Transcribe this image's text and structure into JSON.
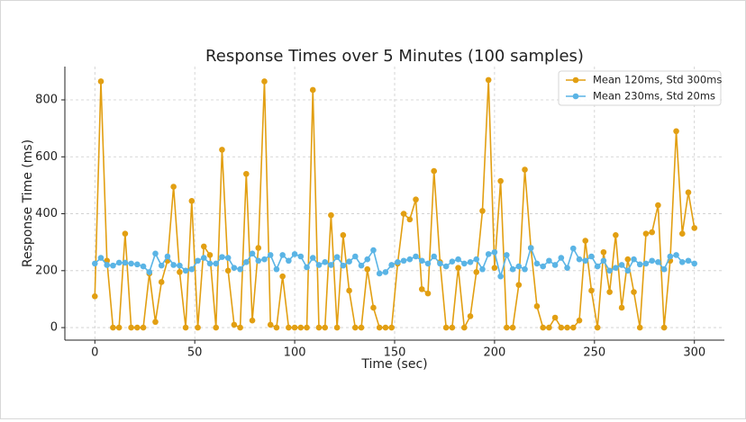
{
  "chart_data": {
    "type": "line",
    "title": "Response Times over 5 Minutes (100 samples)",
    "x_label": "Time (sec)",
    "y_label": "Response Time (ms)",
    "x": [
      0,
      3.03,
      6.06,
      9.09,
      12.12,
      15.15,
      18.18,
      21.21,
      24.24,
      27.27,
      30.3,
      33.33,
      36.36,
      39.39,
      42.42,
      45.45,
      48.48,
      51.52,
      54.55,
      57.58,
      60.61,
      63.64,
      66.67,
      69.7,
      72.73,
      75.76,
      78.79,
      81.82,
      84.85,
      87.88,
      90.91,
      93.94,
      96.97,
      100,
      103.03,
      106.06,
      109.09,
      112.12,
      115.15,
      118.18,
      121.21,
      124.24,
      127.27,
      130.3,
      133.33,
      136.36,
      139.39,
      142.42,
      145.45,
      148.48,
      151.52,
      154.55,
      157.58,
      160.61,
      163.64,
      166.67,
      169.7,
      172.73,
      175.76,
      178.79,
      181.82,
      184.85,
      187.88,
      190.91,
      193.94,
      196.97,
      200,
      203.03,
      206.06,
      209.09,
      212.12,
      215.15,
      218.18,
      221.21,
      224.24,
      227.27,
      230.3,
      233.33,
      236.36,
      239.39,
      242.42,
      245.45,
      248.48,
      251.52,
      254.55,
      257.58,
      260.61,
      263.64,
      266.67,
      269.7,
      272.73,
      275.76,
      278.79,
      281.82,
      284.85,
      287.88,
      290.91,
      293.94,
      296.97,
      300
    ],
    "series": [
      {
        "name": "Mean 120ms, Std 300ms",
        "color": "#e29f12",
        "values": [
          110,
          865,
          235,
          0,
          0,
          330,
          0,
          0,
          0,
          190,
          20,
          160,
          235,
          495,
          195,
          0,
          445,
          0,
          285,
          255,
          0,
          625,
          200,
          10,
          0,
          540,
          25,
          280,
          865,
          10,
          0,
          180,
          0,
          0,
          0,
          0,
          835,
          0,
          0,
          395,
          0,
          325,
          130,
          0,
          0,
          205,
          70,
          0,
          0,
          0,
          225,
          400,
          380,
          450,
          135,
          120,
          550,
          230,
          0,
          0,
          210,
          0,
          40,
          195,
          410,
          870,
          210,
          515,
          0,
          0,
          150,
          555,
          280,
          75,
          0,
          0,
          35,
          0,
          0,
          0,
          25,
          305,
          130,
          0,
          265,
          125,
          325,
          70,
          240,
          125,
          0,
          330,
          335,
          430,
          0,
          235,
          690,
          330,
          475,
          350
        ]
      },
      {
        "name": "Mean 230ms, Std 20ms",
        "color": "#5ab4e5",
        "values": [
          225,
          245,
          220,
          218,
          228,
          228,
          225,
          222,
          215,
          195,
          260,
          218,
          250,
          220,
          218,
          200,
          205,
          235,
          245,
          225,
          225,
          248,
          245,
          210,
          205,
          230,
          260,
          235,
          240,
          255,
          205,
          255,
          235,
          258,
          250,
          212,
          245,
          220,
          230,
          220,
          248,
          218,
          232,
          250,
          218,
          240,
          272,
          190,
          195,
          220,
          230,
          235,
          240,
          250,
          235,
          225,
          250,
          225,
          215,
          232,
          240,
          225,
          230,
          240,
          205,
          258,
          265,
          180,
          255,
          205,
          215,
          205,
          280,
          225,
          215,
          235,
          220,
          245,
          210,
          278,
          240,
          235,
          250,
          215,
          235,
          200,
          210,
          220,
          200,
          240,
          222,
          225,
          235,
          230,
          205,
          250,
          255,
          230,
          235,
          225
        ]
      }
    ],
    "xlim": [
      -15,
      315
    ],
    "xticks": [
      0,
      50,
      100,
      150,
      200,
      250,
      300
    ],
    "ylim": [
      -44,
      917
    ],
    "yticks": [
      0,
      200,
      400,
      600,
      800
    ],
    "grid": true,
    "legend": "upper right"
  }
}
